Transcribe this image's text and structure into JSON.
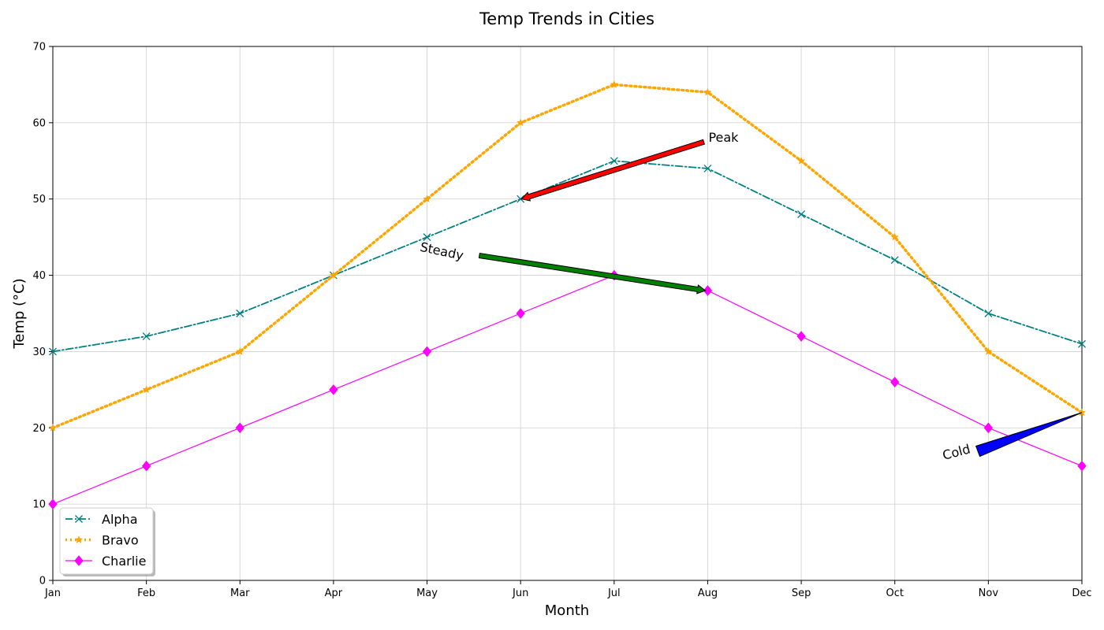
{
  "chart_data": {
    "type": "line",
    "title": "Temp Trends in Cities",
    "xlabel": "Month",
    "ylabel": "Temp (°C)",
    "categories": [
      "Jan",
      "Feb",
      "Mar",
      "Apr",
      "May",
      "Jun",
      "Jul",
      "Aug",
      "Sep",
      "Oct",
      "Nov",
      "Dec"
    ],
    "ylim": [
      0,
      70
    ],
    "yticks": [
      0,
      10,
      20,
      30,
      40,
      50,
      60,
      70
    ],
    "grid": true,
    "legend_position": "lower-left",
    "series": [
      {
        "name": "Alpha",
        "values": [
          30,
          32,
          35,
          40,
          45,
          50,
          55,
          54,
          48,
          42,
          35,
          31
        ],
        "color": "#008080",
        "line_style": "dash-dot",
        "marker": "x"
      },
      {
        "name": "Bravo",
        "values": [
          20,
          25,
          30,
          40,
          50,
          60,
          65,
          64,
          55,
          45,
          30,
          22
        ],
        "color": "#ffa500",
        "line_style": "dotted",
        "marker": "star"
      },
      {
        "name": "Charlie",
        "values": [
          10,
          15,
          20,
          25,
          30,
          35,
          40,
          38,
          32,
          26,
          20,
          15
        ],
        "color": "#ff00ff",
        "line_style": "solid",
        "marker": "diamond"
      }
    ],
    "annotations": [
      {
        "text": "Peak",
        "text_x": 7.0,
        "text_y": 58,
        "target_x": 5.0,
        "target_y": 50,
        "arrow_color": "#ff0000",
        "text_rotation": 0
      },
      {
        "text": "Steady",
        "text_x": 4.5,
        "text_y": 43,
        "target_x": 7.0,
        "target_y": 38,
        "arrow_color": "#008000",
        "text_rotation": 12
      },
      {
        "text": "Cold",
        "text_x": 9.5,
        "text_y": 16,
        "target_x": 11.0,
        "target_y": 22,
        "arrow_color": "#0000ff",
        "text_rotation": -15
      }
    ]
  }
}
